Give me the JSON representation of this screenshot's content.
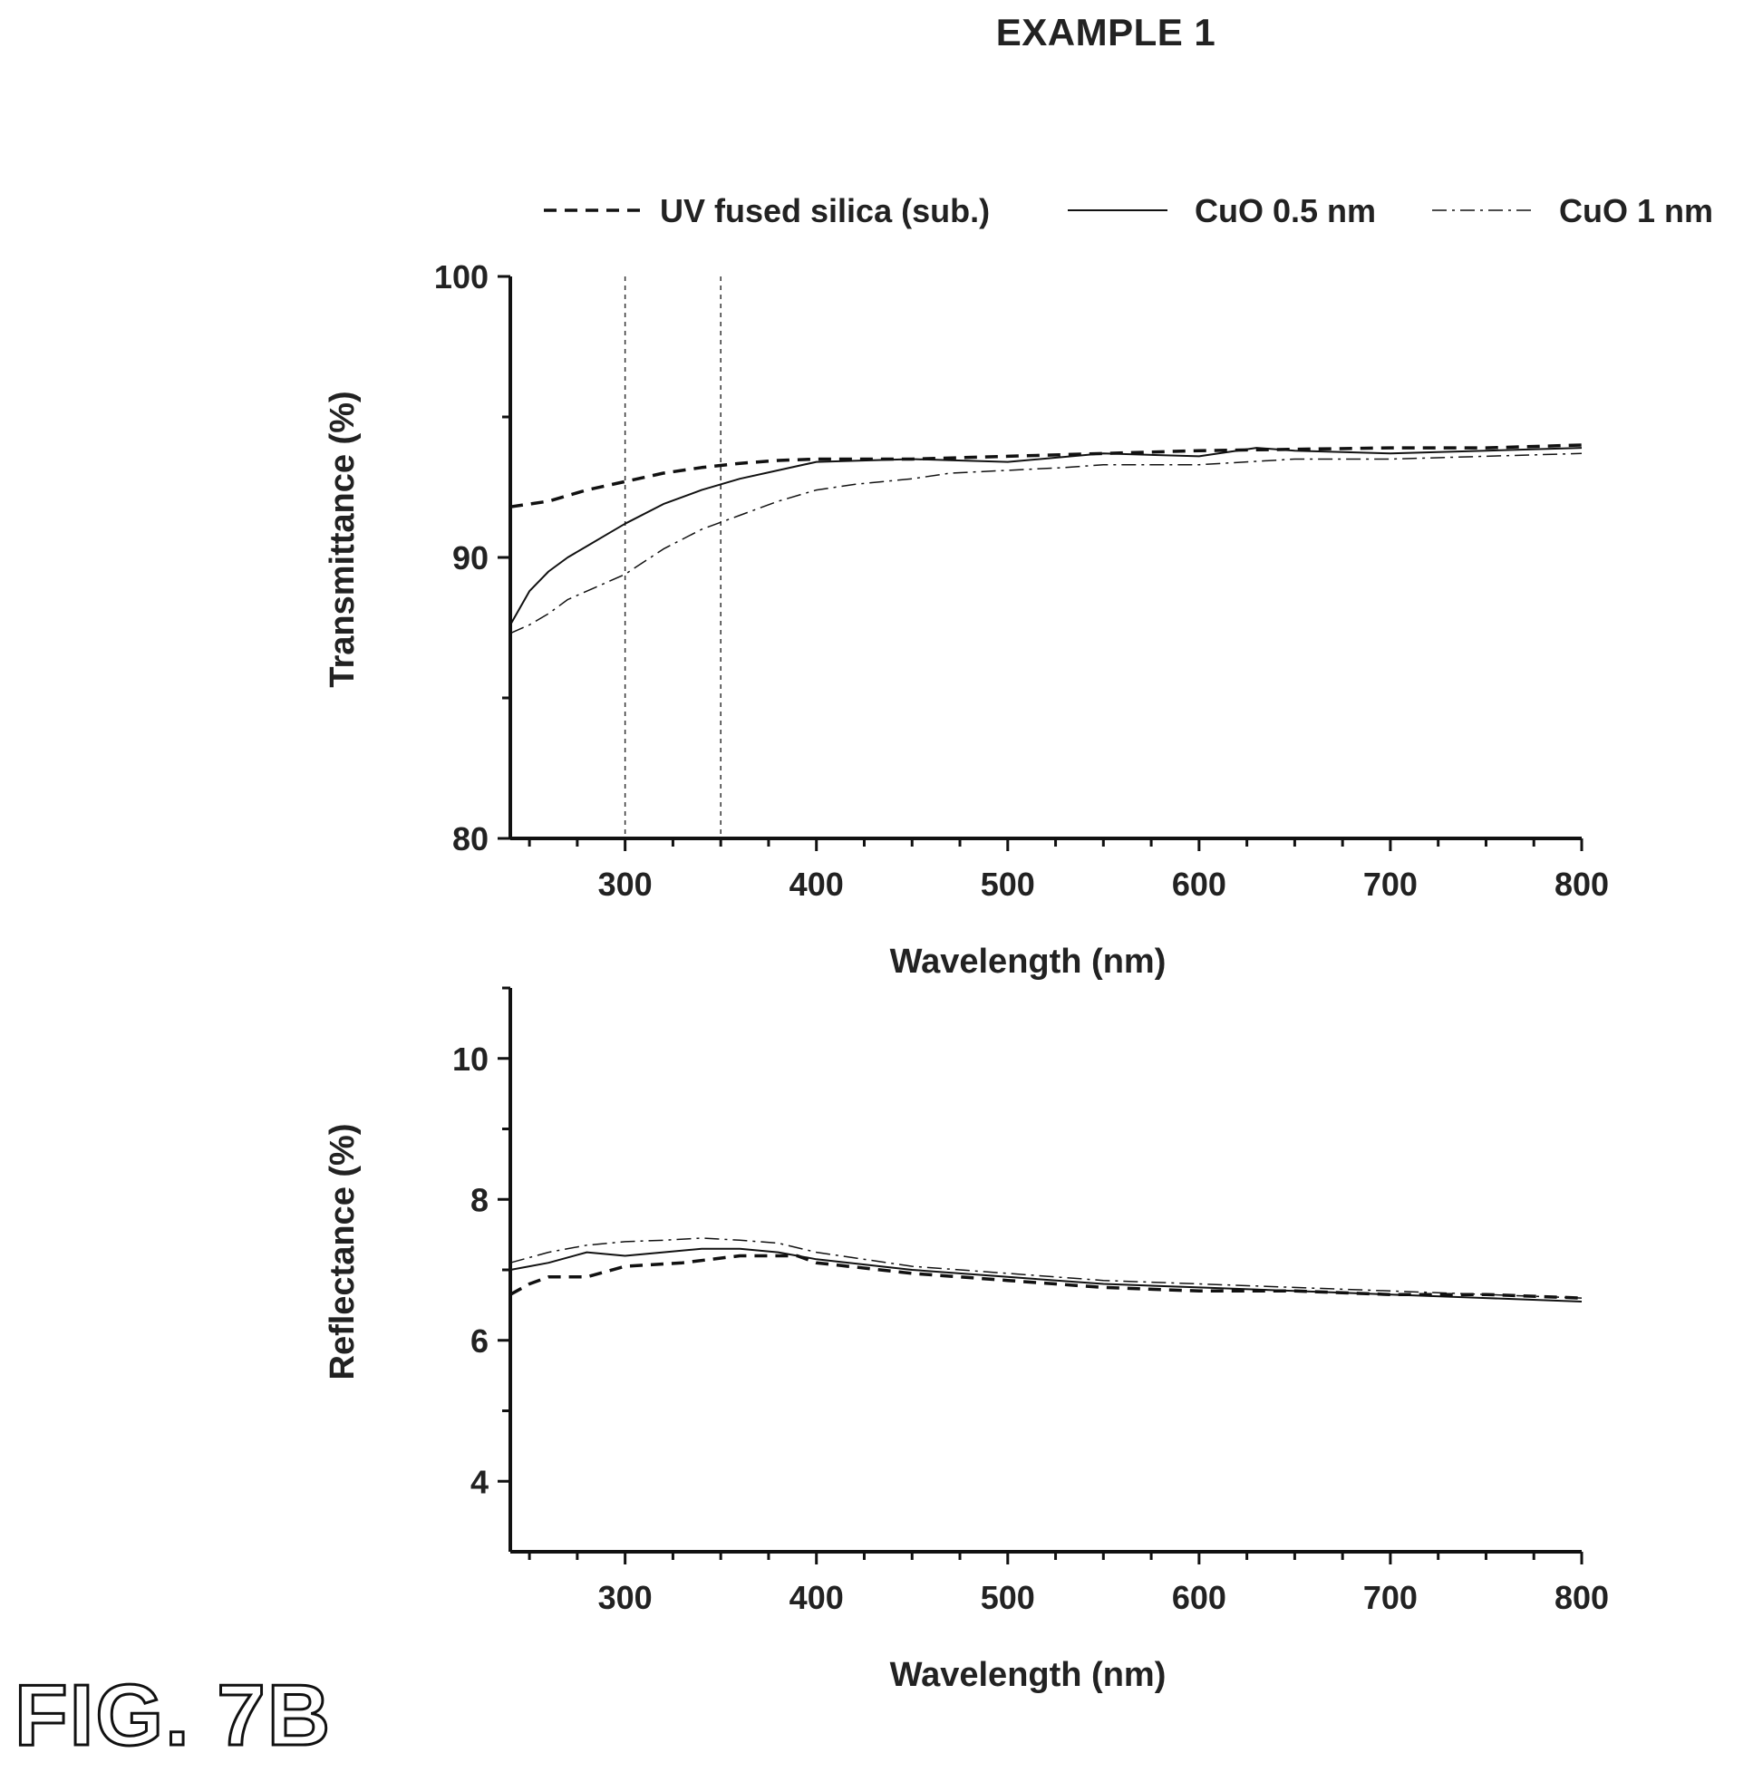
{
  "page": {
    "title": "EXAMPLE 1",
    "figure_label": "FIG. 7B"
  },
  "legend": {
    "entries": [
      {
        "label": "UV fused silica (sub.)",
        "style": "dashed"
      },
      {
        "label": "CuO 0.5 nm",
        "style": "solid"
      },
      {
        "label": "CuO 1 nm",
        "style": "dash-dot"
      }
    ],
    "placement": "top"
  },
  "chart_data": [
    {
      "type": "line",
      "title": "",
      "xlabel": "Wavelength (nm)",
      "ylabel": "Transmittance (%)",
      "xlim": [
        240,
        800
      ],
      "ylim": [
        80,
        100
      ],
      "xticks": [
        300,
        400,
        500,
        600,
        700,
        800
      ],
      "yticks": [
        80,
        90,
        100
      ],
      "reference_lines_x": [
        300,
        350
      ],
      "grid": false,
      "series": [
        {
          "name": "UV fused silica (sub.)",
          "style": "dashed",
          "x": [
            240,
            260,
            280,
            300,
            320,
            340,
            360,
            380,
            400,
            450,
            500,
            550,
            600,
            650,
            700,
            750,
            800
          ],
          "y": [
            91.8,
            92.0,
            92.4,
            92.7,
            93.0,
            93.2,
            93.35,
            93.45,
            93.5,
            93.5,
            93.6,
            93.7,
            93.8,
            93.85,
            93.9,
            93.9,
            94.0
          ]
        },
        {
          "name": "CuO 0.5 nm",
          "style": "solid",
          "x": [
            240,
            250,
            260,
            270,
            280,
            290,
            300,
            320,
            340,
            360,
            380,
            400,
            450,
            500,
            550,
            600,
            630,
            650,
            700,
            750,
            800
          ],
          "y": [
            87.6,
            88.8,
            89.5,
            90.0,
            90.4,
            90.8,
            91.2,
            91.9,
            92.4,
            92.8,
            93.1,
            93.4,
            93.5,
            93.4,
            93.7,
            93.6,
            93.9,
            93.8,
            93.7,
            93.8,
            93.9
          ]
        },
        {
          "name": "CuO 1 nm",
          "style": "dash-dot",
          "x": [
            240,
            250,
            260,
            270,
            280,
            290,
            300,
            320,
            340,
            360,
            380,
            400,
            420,
            450,
            470,
            500,
            530,
            550,
            600,
            650,
            700,
            750,
            800
          ],
          "y": [
            87.3,
            87.6,
            88.0,
            88.5,
            88.8,
            89.1,
            89.4,
            90.3,
            91.0,
            91.5,
            92.0,
            92.4,
            92.6,
            92.8,
            93.0,
            93.1,
            93.2,
            93.3,
            93.3,
            93.5,
            93.5,
            93.6,
            93.7
          ]
        }
      ]
    },
    {
      "type": "line",
      "title": "",
      "xlabel": "Wavelength (nm)",
      "ylabel": "Reflectance (%)",
      "xlim": [
        240,
        800
      ],
      "ylim": [
        3,
        11
      ],
      "xticks": [
        300,
        400,
        500,
        600,
        700,
        800
      ],
      "yticks": [
        4,
        6,
        8,
        10
      ],
      "grid": false,
      "series": [
        {
          "name": "UV fused silica (sub.)",
          "style": "dashed",
          "x": [
            240,
            250,
            260,
            280,
            300,
            330,
            360,
            390,
            400,
            450,
            500,
            550,
            600,
            650,
            700,
            750,
            800
          ],
          "y": [
            6.65,
            6.8,
            6.9,
            6.9,
            7.05,
            7.1,
            7.2,
            7.2,
            7.1,
            6.95,
            6.85,
            6.75,
            6.7,
            6.7,
            6.65,
            6.65,
            6.6
          ]
        },
        {
          "name": "CuO 0.5 nm",
          "style": "solid",
          "x": [
            240,
            260,
            280,
            300,
            320,
            340,
            360,
            380,
            400,
            450,
            500,
            550,
            600,
            650,
            700,
            750,
            800
          ],
          "y": [
            7.0,
            7.1,
            7.25,
            7.2,
            7.25,
            7.3,
            7.3,
            7.25,
            7.15,
            7.0,
            6.9,
            6.8,
            6.75,
            6.7,
            6.65,
            6.6,
            6.55
          ]
        },
        {
          "name": "CuO 1 nm",
          "style": "dash-dot",
          "x": [
            240,
            260,
            280,
            300,
            320,
            340,
            360,
            380,
            400,
            450,
            500,
            550,
            600,
            650,
            700,
            750,
            800
          ],
          "y": [
            7.1,
            7.25,
            7.35,
            7.4,
            7.42,
            7.45,
            7.42,
            7.38,
            7.25,
            7.05,
            6.95,
            6.85,
            6.8,
            6.75,
            6.7,
            6.65,
            6.6
          ]
        }
      ]
    }
  ]
}
